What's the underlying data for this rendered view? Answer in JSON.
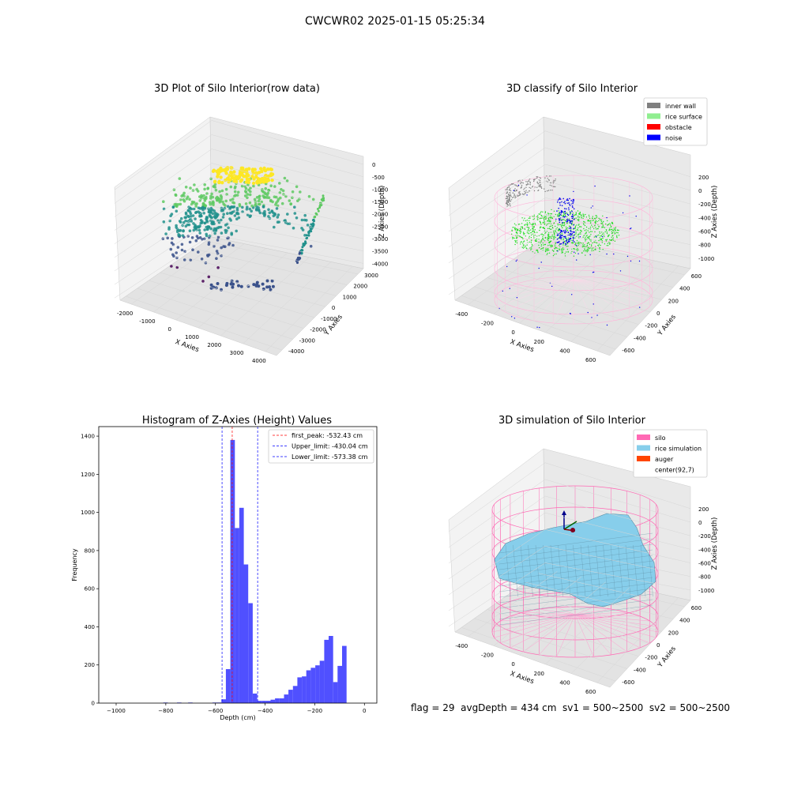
{
  "figure_title": "CWCWR02 2025-01-15 05:25:34",
  "footer_text": "flag = 29  avgDepth = 434 cm  sv1 = 500~2500  sv2 = 500~2500",
  "chart_data": [
    {
      "type": "scatter",
      "title": "3D Plot of Silo Interior(row data)",
      "xlabel": "X Axies",
      "ylabel": "Y Axies",
      "zlabel": "Z Axies (Depth)",
      "x_ticks": [
        -2000,
        -1000,
        0,
        1000,
        2000,
        3000,
        4000
      ],
      "y_ticks": [
        -4000,
        -3000,
        -2000,
        -1000,
        0,
        1000,
        2000,
        3000
      ],
      "z_ticks": [
        -4000,
        -3500,
        -3000,
        -2500,
        -2000,
        -1500,
        -1000,
        -500,
        0
      ],
      "colormap": [
        "#440154",
        "#3b528b",
        "#21918c",
        "#5ec962",
        "#fde725"
      ]
    },
    {
      "type": "scatter",
      "title": "3D classify of Silo Interior",
      "xlabel": "X Axies",
      "ylabel": "Y Axies",
      "zlabel": "Z Axies (Depth)",
      "x_ticks": [
        -400,
        -200,
        0,
        200,
        400,
        600
      ],
      "y_ticks": [
        -600,
        -400,
        -200,
        0,
        200,
        400,
        600
      ],
      "z_ticks": [
        -1000,
        -800,
        -600,
        -400,
        -200,
        0,
        200
      ],
      "legend": [
        {
          "label": "inner wall",
          "color": "#808080"
        },
        {
          "label": "rice surface",
          "color": "#90ee90"
        },
        {
          "label": "obstacle",
          "color": "#ff0000"
        },
        {
          "label": "noise",
          "color": "#0000ff"
        }
      ],
      "legend_position": "top-right"
    },
    {
      "type": "bar",
      "title": "Histogram of Z-Axies (Height) Values",
      "xlabel": "Depth (cm)",
      "ylabel": "Frequency",
      "xlim": [
        -1070,
        50
      ],
      "ylim": [
        0,
        1450
      ],
      "x_ticks": [
        -1000,
        -800,
        -600,
        -400,
        -200,
        0
      ],
      "y_ticks": [
        0,
        200,
        400,
        600,
        800,
        1000,
        1200,
        1400
      ],
      "bar_color": "#4d4dff",
      "bins": [
        {
          "x0": -810,
          "x1": -792,
          "count": 3
        },
        {
          "x0": -755,
          "x1": -737,
          "count": 3
        },
        {
          "x0": -710,
          "x1": -692,
          "count": 3
        },
        {
          "x0": -612,
          "x1": -594,
          "count": 3
        },
        {
          "x0": -594,
          "x1": -576,
          "count": 3
        },
        {
          "x0": -576,
          "x1": -558,
          "count": 20
        },
        {
          "x0": -558,
          "x1": -540,
          "count": 178
        },
        {
          "x0": -540,
          "x1": -522,
          "count": 1380
        },
        {
          "x0": -522,
          "x1": -504,
          "count": 918
        },
        {
          "x0": -504,
          "x1": -486,
          "count": 1024
        },
        {
          "x0": -486,
          "x1": -468,
          "count": 727
        },
        {
          "x0": -468,
          "x1": -450,
          "count": 524
        },
        {
          "x0": -450,
          "x1": -432,
          "count": 50
        },
        {
          "x0": -432,
          "x1": -414,
          "count": 12
        },
        {
          "x0": -414,
          "x1": -396,
          "count": 12
        },
        {
          "x0": -396,
          "x1": -378,
          "count": 12
        },
        {
          "x0": -378,
          "x1": -360,
          "count": 18
        },
        {
          "x0": -360,
          "x1": -342,
          "count": 25
        },
        {
          "x0": -342,
          "x1": -324,
          "count": 25
        },
        {
          "x0": -324,
          "x1": -306,
          "count": 45
        },
        {
          "x0": -306,
          "x1": -288,
          "count": 70
        },
        {
          "x0": -288,
          "x1": -270,
          "count": 90
        },
        {
          "x0": -270,
          "x1": -252,
          "count": 135
        },
        {
          "x0": -252,
          "x1": -234,
          "count": 140
        },
        {
          "x0": -234,
          "x1": -216,
          "count": 172
        },
        {
          "x0": -216,
          "x1": -198,
          "count": 185
        },
        {
          "x0": -198,
          "x1": -180,
          "count": 198
        },
        {
          "x0": -180,
          "x1": -162,
          "count": 222
        },
        {
          "x0": -162,
          "x1": -144,
          "count": 332
        },
        {
          "x0": -144,
          "x1": -126,
          "count": 352
        },
        {
          "x0": -126,
          "x1": -108,
          "count": 110
        },
        {
          "x0": -108,
          "x1": -90,
          "count": 195
        },
        {
          "x0": -90,
          "x1": -72,
          "count": 300
        }
      ],
      "vlines": [
        {
          "label": "first_peak: -532.43 cm",
          "x": -532.43,
          "color": "#ff0000"
        },
        {
          "label": "Upper_limit: -430.04 cm",
          "x": -430.04,
          "color": "#0000ff"
        },
        {
          "label": "Lower_limit: -573.38 cm",
          "x": -573.38,
          "color": "#0000ff"
        }
      ],
      "legend_position": "top-right"
    },
    {
      "type": "surface",
      "title": "3D simulation of Silo Interior",
      "xlabel": "X Axies",
      "ylabel": "Y Axies",
      "zlabel": "Z Axies (Depth)",
      "x_ticks": [
        -400,
        -200,
        0,
        200,
        400,
        600
      ],
      "y_ticks": [
        -600,
        -400,
        -200,
        0,
        200,
        400,
        600
      ],
      "z_ticks": [
        -1000,
        -800,
        -600,
        -400,
        -200,
        0,
        200
      ],
      "legend": [
        {
          "label": "silo",
          "color": "#ff69b4"
        },
        {
          "label": "rice simulation",
          "color": "#87ceeb"
        },
        {
          "label": "auger",
          "color": "#ff4500"
        },
        {
          "label": "center(92,7)",
          "color": "#ffffff"
        }
      ],
      "legend_position": "top-right"
    }
  ]
}
